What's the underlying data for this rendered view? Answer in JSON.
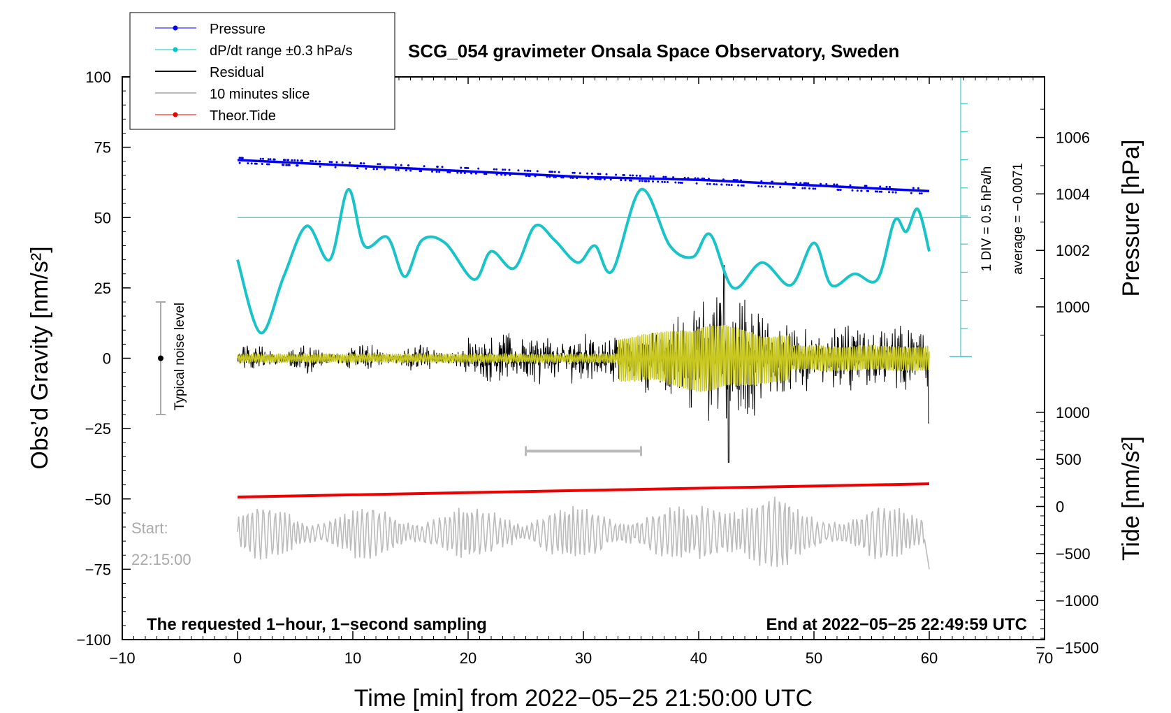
{
  "chart_data": {
    "type": "line",
    "title": "SCG_054 gravimeter Onsala Space Observatory, Sweden",
    "xlabel": "Time [min] from 2022−05−25 21:50:00 UTC",
    "ylabel_left": "Obs’d Gravity [nm/s²]",
    "ylabel_right_pressure": "Pressure [hPa]",
    "ylabel_right_tide": "Tide [nm/s²]",
    "xlim": [
      -10,
      70
    ],
    "ylim": [
      -100,
      100
    ],
    "x_ticks": [
      -10,
      0,
      10,
      20,
      30,
      40,
      50,
      60,
      70
    ],
    "x_tick_labels": [
      "−10",
      "0",
      "10",
      "20",
      "30",
      "40",
      "50",
      "60",
      "70"
    ],
    "y_ticks": [
      -100,
      -75,
      -50,
      -25,
      0,
      25,
      50,
      75,
      100
    ],
    "y_tick_labels": [
      "−100",
      "−75",
      "−50",
      "−25",
      "0",
      "25",
      "50",
      "75",
      "100"
    ],
    "pressure_ticks": [
      1000,
      1002,
      1004,
      1006
    ],
    "pressure_tick_labels": [
      "1000",
      "1002",
      "1004",
      "1006"
    ],
    "tide_ticks": [
      -1500,
      -1000,
      -500,
      0,
      500,
      1000
    ],
    "tide_tick_labels": [
      "−1500",
      "−1000",
      "−500",
      "0",
      "500",
      "1000"
    ],
    "legend": [
      {
        "label": "Pressure",
        "color": "#0000ee",
        "marker": "dot"
      },
      {
        "label": "dP/dt range ±0.3 hPa/s",
        "color": "#00c8c8",
        "marker": "dot"
      },
      {
        "label": "Residual",
        "color": "#000000",
        "marker": "none"
      },
      {
        "label": "10 minutes slice",
        "color": "#bbbbbb",
        "marker": "none"
      },
      {
        "label": "Theor.Tide",
        "color": "#ee0000",
        "marker": "dot"
      }
    ],
    "series": [
      {
        "name": "Pressure",
        "unit": "hPa",
        "color": "#0000ee",
        "x": [
          0,
          10,
          20,
          30,
          40,
          50,
          60
        ],
        "values": [
          1005.2,
          1005.0,
          1004.8,
          1004.6,
          1004.5,
          1004.3,
          1004.1
        ]
      },
      {
        "name": "dP/dt range",
        "color": "#19c4c8",
        "x": [
          0,
          2,
          4,
          6,
          8,
          9.6,
          11,
          13,
          14.5,
          16,
          18,
          20.5,
          22,
          24,
          25.8,
          27.5,
          29.5,
          31,
          32.5,
          35,
          37.5,
          39.5,
          41,
          43,
          45.5,
          48,
          50,
          51.5,
          53.5,
          55.5,
          57,
          58,
          59,
          60
        ],
        "values": [
          35,
          9,
          29,
          47,
          35,
          60,
          40,
          43,
          29,
          42,
          41,
          28,
          38,
          32,
          47,
          42,
          34,
          40,
          31,
          60,
          40,
          36,
          44,
          25,
          34,
          26,
          41,
          26,
          30,
          28,
          49,
          45,
          53,
          38
        ]
      },
      {
        "name": "Residual",
        "color": "#000000",
        "x": [
          0,
          20,
          35,
          42.5,
          48,
          60
        ],
        "values": [
          0,
          0,
          0,
          0,
          0,
          0
        ]
      },
      {
        "name": "10 minutes slice",
        "color": "#bbbbbb",
        "x": [
          0,
          60
        ],
        "values": [
          -60,
          -75
        ]
      },
      {
        "name": "Theor.Tide",
        "unit": "nm/s²",
        "color": "#ee0000",
        "x": [
          0,
          60
        ],
        "values": [
          100,
          240
        ]
      }
    ],
    "annotations": {
      "noise_label": "Typical noise level",
      "noise_range": [
        -20,
        20
      ],
      "slice_bar": [
        25,
        35
      ],
      "dpdt_div": "1 DIV = 0.5 hPa/h",
      "dpdt_average": "average = −0.0071",
      "start_label": "Start:",
      "start_time": "22:15:00",
      "bottom_left": "The requested 1−hour, 1−second sampling",
      "bottom_right": "End at 2022−05−25 22:49:59 UTC"
    }
  }
}
